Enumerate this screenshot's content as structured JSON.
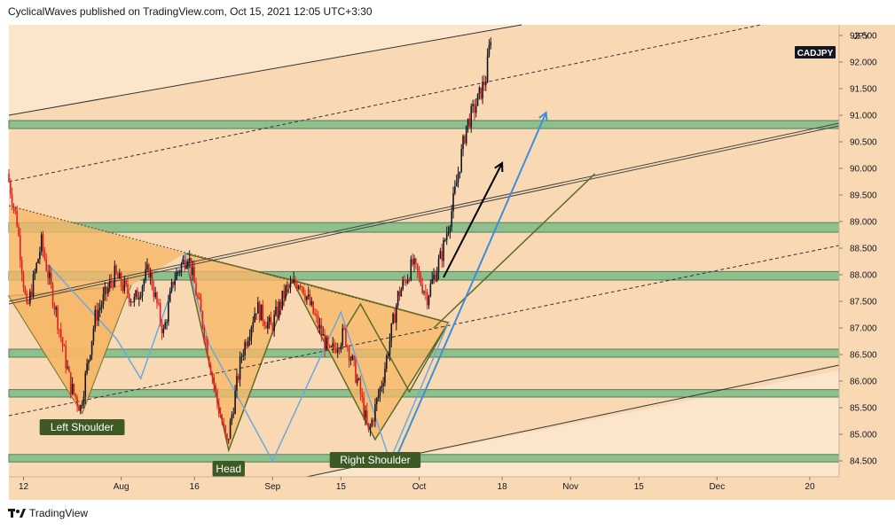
{
  "header": {
    "text": "CyclicalWaves published on TradingView.com, Oct 15, 2021 12:05 UTC+3:30"
  },
  "footer": {
    "brand": "TradingView"
  },
  "colors": {
    "background": "#f9d9b4",
    "zone": "#8fbf8a",
    "pattern_fill": "#f6b869",
    "pattern_stroke": "#5b6b2a",
    "bullish_candle": "#131722",
    "bearish_candle": "#e02020",
    "label_bg": "#3d5a24",
    "blue_line": "#6fa8dc",
    "arrow_blue": "#3d8fd9",
    "arrow_black": "#000000"
  },
  "chart_data": {
    "type": "candlestick",
    "symbol": "CADJPY",
    "currency": "JPY",
    "y_axis": {
      "min": 84.2,
      "max": 92.7,
      "ticks": [
        "92.500",
        "92.000",
        "91.500",
        "91.000",
        "90.500",
        "90.000",
        "89.500",
        "89.000",
        "88.500",
        "88.000",
        "87.500",
        "87.000",
        "86.500",
        "86.000",
        "85.500",
        "85.000",
        "84.500"
      ]
    },
    "x_axis": {
      "start": "2021-07-09",
      "end": "2021-12-26",
      "ticks": [
        {
          "label": "12",
          "date": "2021-07-12"
        },
        {
          "label": "Aug",
          "date": "2021-08-01"
        },
        {
          "label": "16",
          "date": "2021-08-16"
        },
        {
          "label": "Sep",
          "date": "2021-09-01"
        },
        {
          "label": "15",
          "date": "2021-09-15"
        },
        {
          "label": "Oct",
          "date": "2021-10-01"
        },
        {
          "label": "18",
          "date": "2021-10-18"
        },
        {
          "label": "Nov",
          "date": "2021-11-01"
        },
        {
          "label": "15",
          "date": "2021-11-15"
        },
        {
          "label": "Dec",
          "date": "2021-12-01"
        },
        {
          "label": "20",
          "date": "2021-12-20"
        }
      ]
    },
    "price_path": [
      {
        "date": "2021-07-09",
        "price": 89.9
      },
      {
        "date": "2021-07-11",
        "price": 89.0
      },
      {
        "date": "2021-07-13",
        "price": 87.3
      },
      {
        "date": "2021-07-16",
        "price": 88.6
      },
      {
        "date": "2021-07-19",
        "price": 87.3
      },
      {
        "date": "2021-07-22",
        "price": 85.9
      },
      {
        "date": "2021-07-24",
        "price": 85.5
      },
      {
        "date": "2021-07-27",
        "price": 87.2
      },
      {
        "date": "2021-07-31",
        "price": 88.0
      },
      {
        "date": "2021-08-04",
        "price": 87.5
      },
      {
        "date": "2021-08-07",
        "price": 88.1
      },
      {
        "date": "2021-08-10",
        "price": 86.9
      },
      {
        "date": "2021-08-12",
        "price": 87.9
      },
      {
        "date": "2021-08-15",
        "price": 88.4
      },
      {
        "date": "2021-08-18",
        "price": 87.1
      },
      {
        "date": "2021-08-21",
        "price": 85.6
      },
      {
        "date": "2021-08-23",
        "price": 84.8
      },
      {
        "date": "2021-08-26",
        "price": 86.5
      },
      {
        "date": "2021-08-29",
        "price": 87.4
      },
      {
        "date": "2021-09-01",
        "price": 87.0
      },
      {
        "date": "2021-09-04",
        "price": 87.7
      },
      {
        "date": "2021-09-07",
        "price": 87.9
      },
      {
        "date": "2021-09-10",
        "price": 87.2
      },
      {
        "date": "2021-09-13",
        "price": 86.5
      },
      {
        "date": "2021-09-16",
        "price": 86.9
      },
      {
        "date": "2021-09-19",
        "price": 85.9
      },
      {
        "date": "2021-09-21",
        "price": 85.0
      },
      {
        "date": "2021-09-24",
        "price": 86.1
      },
      {
        "date": "2021-09-27",
        "price": 87.6
      },
      {
        "date": "2021-09-30",
        "price": 88.2
      },
      {
        "date": "2021-10-03",
        "price": 87.6
      },
      {
        "date": "2021-10-06",
        "price": 88.4
      },
      {
        "date": "2021-10-08",
        "price": 89.2
      },
      {
        "date": "2021-10-11",
        "price": 90.8
      },
      {
        "date": "2021-10-13",
        "price": 91.2
      },
      {
        "date": "2021-10-15",
        "price": 91.7
      },
      {
        "date": "2021-10-16",
        "price": 92.5
      }
    ],
    "zones": [
      {
        "low": 90.75,
        "high": 90.9
      },
      {
        "low": 88.8,
        "high": 88.98
      },
      {
        "low": 87.9,
        "high": 88.06
      },
      {
        "low": 86.45,
        "high": 86.6
      },
      {
        "low": 85.7,
        "high": 85.84
      },
      {
        "low": 84.48,
        "high": 84.62
      }
    ],
    "annotations": [
      {
        "text": "Left Shoulder",
        "date": "2021-07-24",
        "price": 85.5
      },
      {
        "text": "Head",
        "date": "2021-08-23",
        "price": 84.75
      },
      {
        "text": "Right Shoulder",
        "date": "2021-09-22",
        "price": 84.85
      }
    ]
  }
}
